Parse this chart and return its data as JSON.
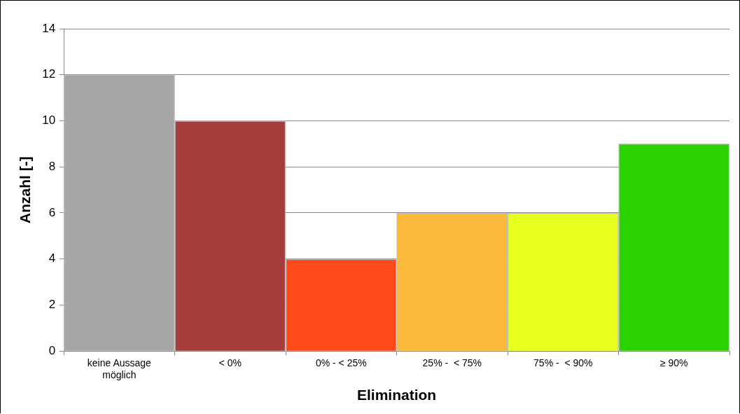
{
  "chart_data": {
    "type": "bar",
    "xlabel": "Elimination",
    "ylabel": "Anzahl [-]",
    "categories": [
      "keine Aussage möglich",
      "< 0%",
      "0% - < 25%",
      "25% -  < 75%",
      "75% -  < 90%",
      "≥ 90%"
    ],
    "values": [
      12,
      10,
      4,
      6,
      6,
      9
    ],
    "colors": [
      "#a6a6a6",
      "#a63d3d",
      "#ff4a1c",
      "#f9b93b",
      "#e6ff1e",
      "#2bd200"
    ],
    "ylim": [
      0,
      14
    ],
    "yticks": [
      0,
      2,
      4,
      6,
      8,
      10,
      12,
      14
    ],
    "grid": "y",
    "legend": false
  }
}
